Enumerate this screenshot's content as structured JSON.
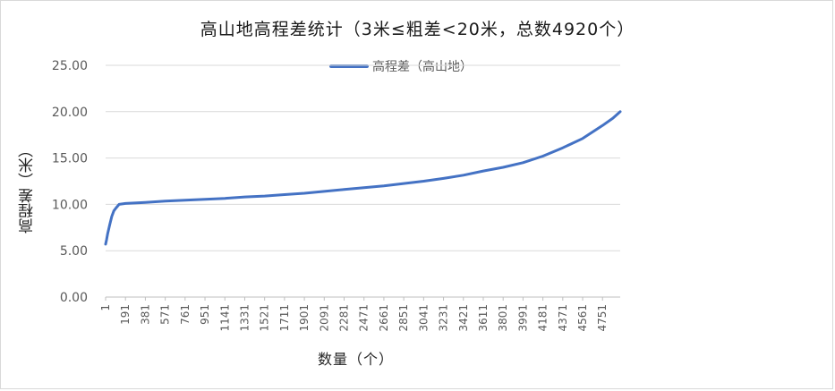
{
  "chart_data": {
    "type": "line",
    "title": "高山地高程差统计（3米≤粗差<20米，总数4920个）",
    "xlabel": "数量（个）",
    "ylabel": "高程差（米）",
    "ylim": [
      0,
      25
    ],
    "yticks": [
      "0.00",
      "5.00",
      "10.00",
      "15.00",
      "20.00",
      "25.00"
    ],
    "xticks": [
      "1",
      "191",
      "381",
      "571",
      "761",
      "951",
      "1141",
      "1331",
      "1521",
      "1711",
      "1901",
      "2091",
      "2281",
      "2471",
      "2661",
      "2851",
      "3041",
      "3231",
      "3421",
      "3611",
      "3801",
      "3991",
      "4181",
      "4371",
      "4561",
      "4751"
    ],
    "x_max": 4920,
    "grid": "horizontal",
    "legend": "top-center",
    "color": "#4472c4",
    "series": [
      {
        "name": "高程差（高山地）",
        "x": [
          1,
          10,
          20,
          40,
          60,
          80,
          100,
          130,
          191,
          381,
          571,
          761,
          951,
          1141,
          1331,
          1521,
          1711,
          1901,
          2091,
          2281,
          2471,
          2661,
          2851,
          3041,
          3231,
          3421,
          3611,
          3801,
          3991,
          4181,
          4371,
          4561,
          4751,
          4850,
          4920
        ],
        "values": [
          5.7,
          6.2,
          6.8,
          7.8,
          8.7,
          9.3,
          9.6,
          10.0,
          10.1,
          10.2,
          10.35,
          10.45,
          10.55,
          10.65,
          10.8,
          10.9,
          11.05,
          11.2,
          11.4,
          11.6,
          11.8,
          12.0,
          12.25,
          12.5,
          12.8,
          13.15,
          13.6,
          14.0,
          14.5,
          15.2,
          16.1,
          17.1,
          18.5,
          19.3,
          20.0
        ]
      }
    ]
  }
}
